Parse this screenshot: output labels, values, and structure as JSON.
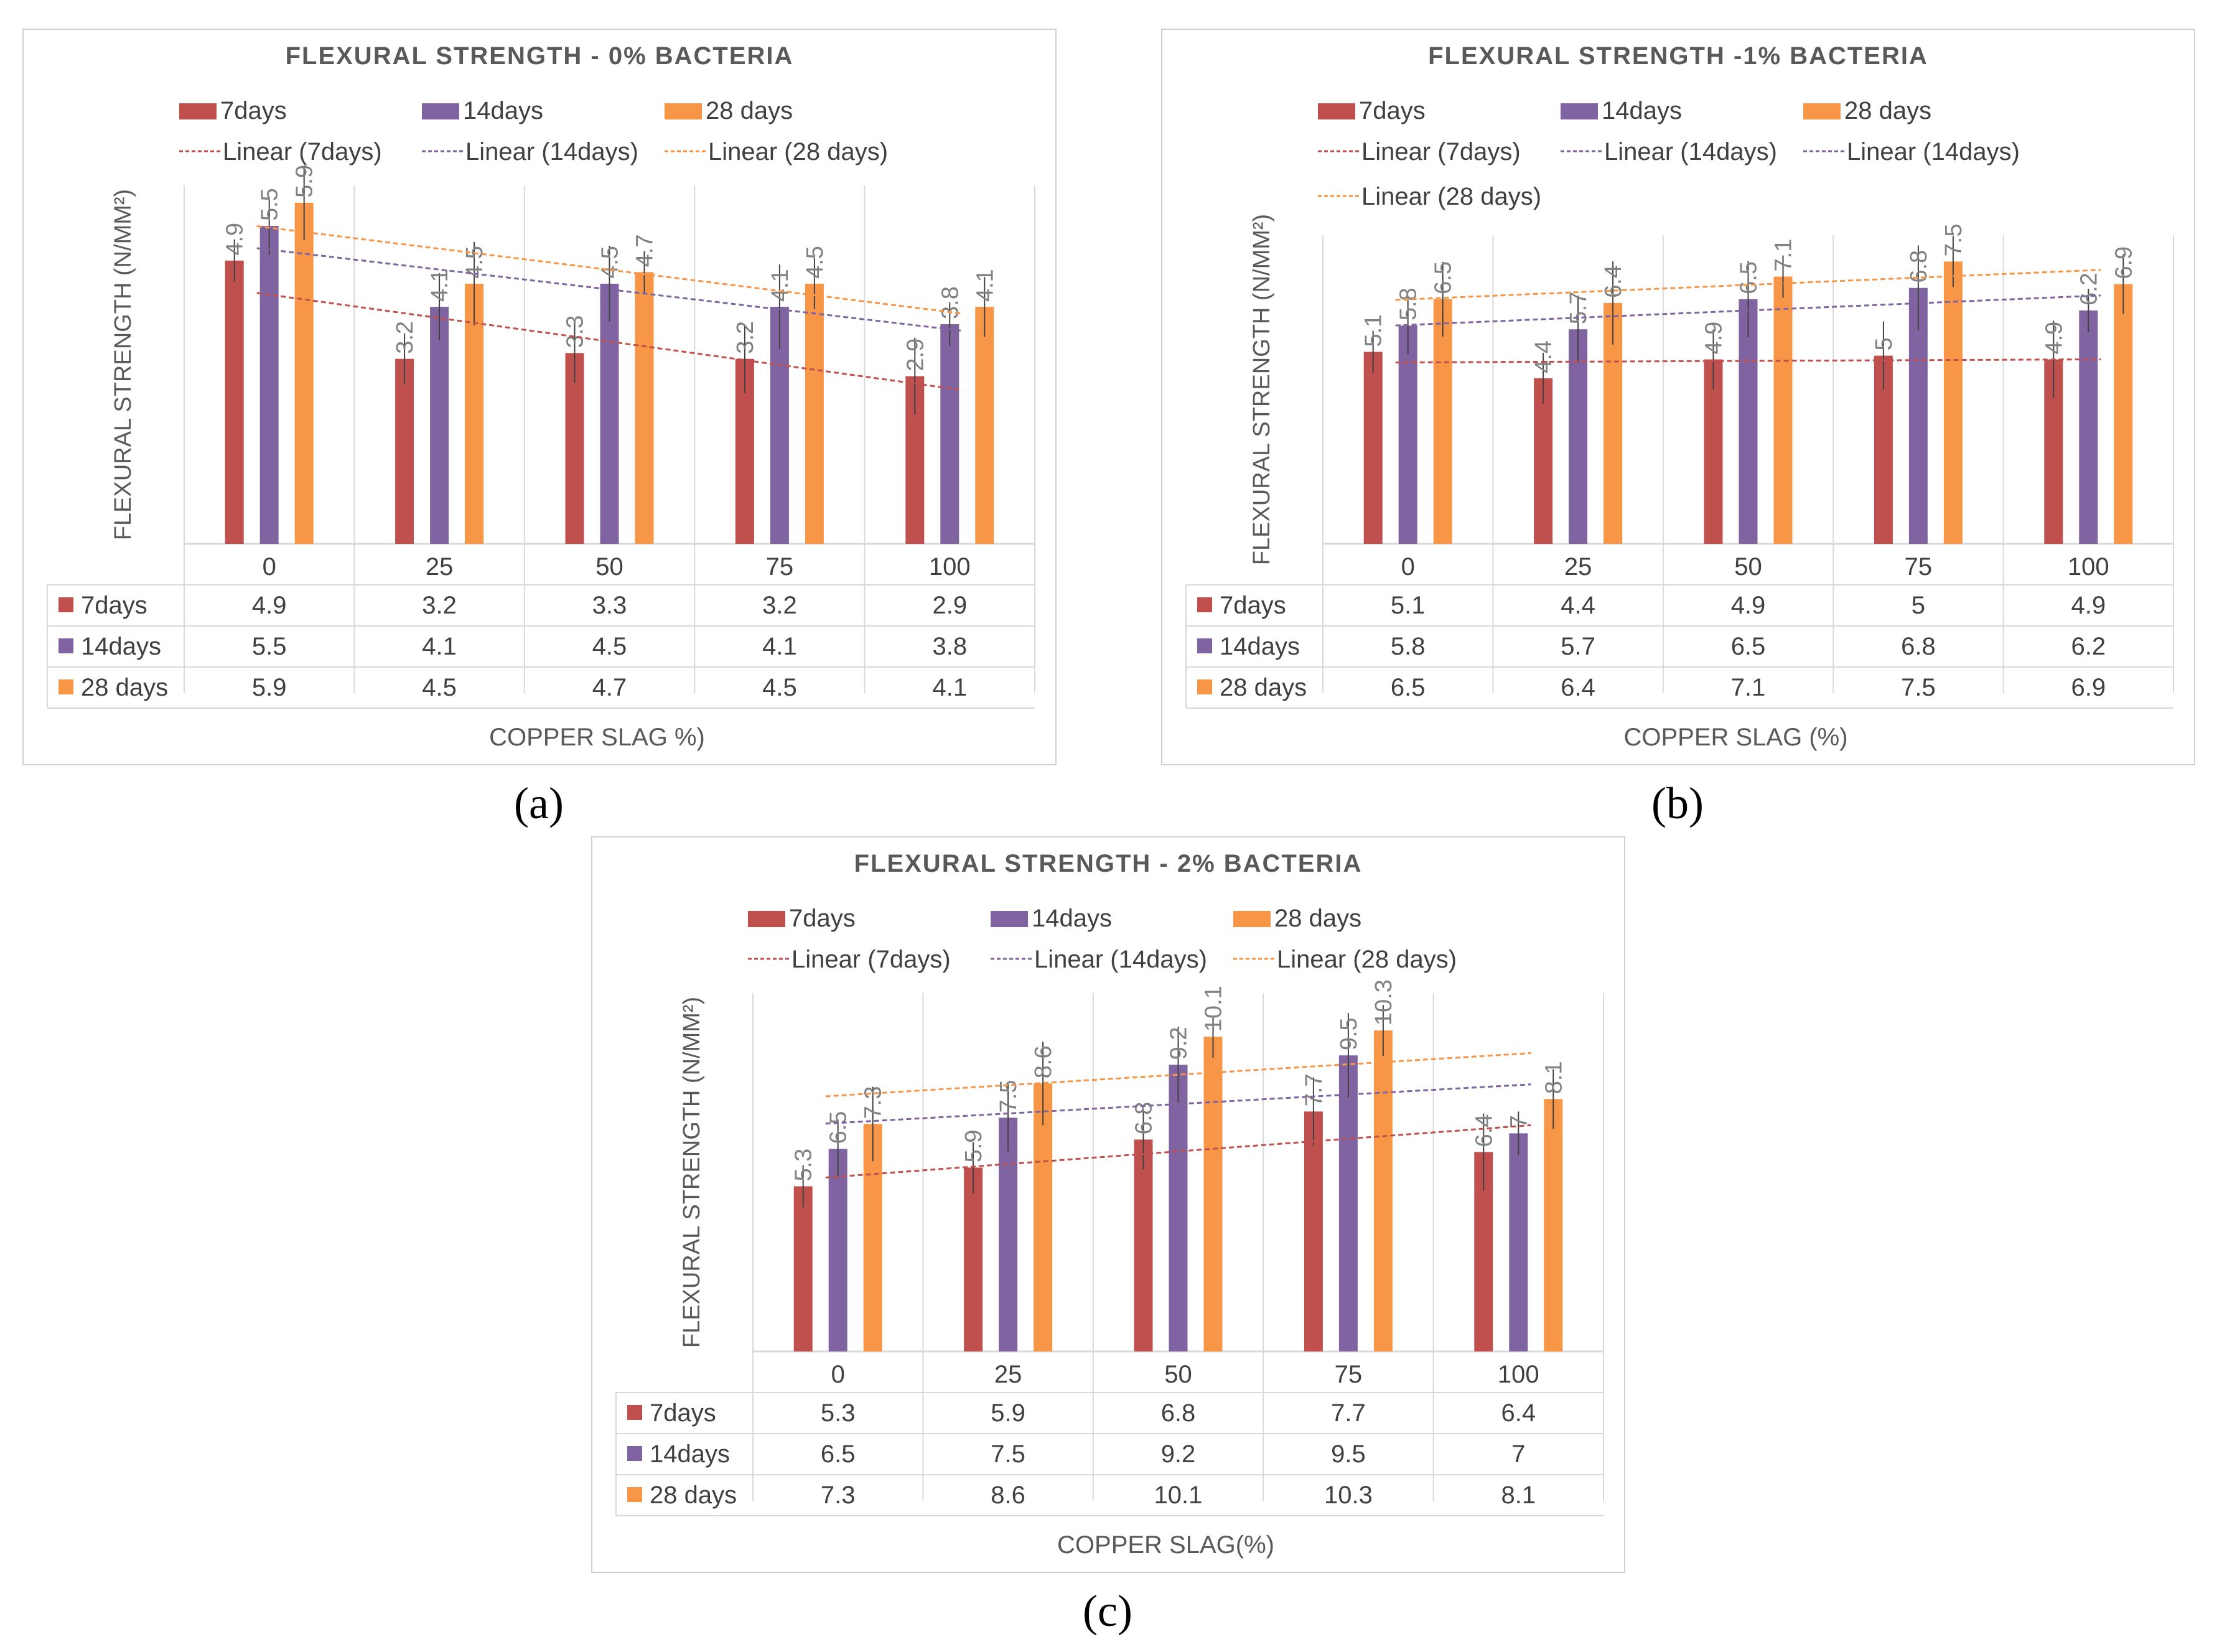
{
  "colors": {
    "7days": "#C0504D",
    "14days": "#8064A2",
    "28days": "#F79646",
    "axis": "#d9d9d9",
    "label": "#808080",
    "text": "#404040"
  },
  "captions": [
    "(a)",
    "(b)",
    "(c)"
  ],
  "chart_data": [
    {
      "type": "bar",
      "title": "FLEXURAL STRENGTH - 0% BACTERIA",
      "ylabel": "FLEXURAL STRENGTH  (N/MM²)",
      "xlabel": "COPPER SLAG %)",
      "categories": [
        "0",
        "25",
        "50",
        "75",
        "100"
      ],
      "ylim": [
        0,
        6.2
      ],
      "legend_bars": [
        "7days",
        "14days",
        "28 days"
      ],
      "legend_lines": [
        "Linear (7days)",
        "Linear (14days)",
        "Linear (28 days)"
      ],
      "series": [
        {
          "name": "7days",
          "values": [
            4.9,
            3.2,
            3.3,
            3.2,
            2.9
          ],
          "labels": [
            "4.9",
            "3.2",
            "3.3",
            "3.2",
            "2.9"
          ],
          "table": [
            "4.9",
            "3.2",
            "3.3",
            "3.2",
            "2.9"
          ]
        },
        {
          "name": "14days",
          "values": [
            5.5,
            4.1,
            4.5,
            4.1,
            3.8
          ],
          "labels": [
            "5.5",
            "4.1",
            "4.5",
            "4.1",
            "3.8"
          ],
          "table": [
            "5.5",
            "4.1",
            "4.5",
            "4.1",
            "3.8"
          ]
        },
        {
          "name": "28 days",
          "values": [
            5.9,
            4.5,
            4.7,
            4.5,
            4.1
          ],
          "labels": [
            "5.9",
            "4.5",
            "4.7",
            "4.5",
            "4.1"
          ],
          "table": [
            "5.9",
            "4.5",
            "4.7",
            "4.5",
            "4.1"
          ]
        }
      ],
      "trend_series": [
        0,
        1,
        2
      ]
    },
    {
      "type": "bar",
      "title": "FLEXURAL STRENGTH -1% BACTERIA",
      "ylabel": "FLEXURAL STRENGTH  (N/MM²)",
      "xlabel": "COPPER SLAG (%)",
      "categories": [
        "0",
        "25",
        "50",
        "75",
        "100"
      ],
      "ylim": [
        0,
        8.2
      ],
      "legend_bars": [
        "7days",
        "14days",
        "28 days"
      ],
      "legend_lines": [
        "Linear (7days)",
        "Linear (14days)",
        "Linear (14days)",
        "Linear (28 days)"
      ],
      "series": [
        {
          "name": "7days",
          "values": [
            5.1,
            4.4,
            4.9,
            5.0,
            4.9
          ],
          "labels": [
            "5.1",
            "4.4",
            "4.9",
            "5",
            "4.9"
          ],
          "table": [
            "5.1",
            "4.4",
            "4.9",
            "5",
            "4.9"
          ]
        },
        {
          "name": "14days",
          "values": [
            5.8,
            5.7,
            6.5,
            6.8,
            6.2
          ],
          "labels": [
            "5.8",
            "5.7",
            "6.5",
            "6.8",
            "6.2"
          ],
          "table": [
            "5.8",
            "5.7",
            "6.5",
            "6.8",
            "6.2"
          ]
        },
        {
          "name": "28 days",
          "values": [
            6.5,
            6.4,
            7.1,
            7.5,
            6.9
          ],
          "labels": [
            "6.5",
            "6.4",
            "7.1",
            "7.5",
            "6.9"
          ],
          "table": [
            "6.5",
            "6.4",
            "7.1",
            "7.5",
            "6.9"
          ]
        }
      ],
      "trend_series": [
        0,
        1,
        2
      ]
    },
    {
      "type": "bar",
      "title": "FLEXURAL STRENGTH - 2% BACTERIA",
      "ylabel": "FLEXURAL STRENGTH (N/MM²)",
      "xlabel": "COPPER SLAG(%)",
      "categories": [
        "0",
        "25",
        "50",
        "75",
        "100"
      ],
      "ylim": [
        0,
        11.5
      ],
      "legend_bars": [
        "7days",
        "14days",
        "28 days"
      ],
      "legend_lines": [
        "Linear (7days)",
        "Linear (14days)",
        "Linear (28 days)"
      ],
      "series": [
        {
          "name": "7days",
          "values": [
            5.3,
            5.9,
            6.8,
            7.7,
            6.4
          ],
          "labels": [
            "5.3",
            "5.9",
            "6.8",
            "7.7",
            "6.4"
          ],
          "table": [
            "5.3",
            "5.9",
            "6.8",
            "7.7",
            "6.4"
          ]
        },
        {
          "name": "14days",
          "values": [
            6.5,
            7.5,
            9.2,
            9.5,
            7.0
          ],
          "labels": [
            "6.5",
            "7.5",
            "9.2",
            "9.5",
            "7"
          ],
          "table": [
            "6.5",
            "7.5",
            "9.2",
            "9.5",
            "7"
          ]
        },
        {
          "name": "28 days",
          "values": [
            7.3,
            8.6,
            10.1,
            10.3,
            8.1
          ],
          "labels": [
            "7.3",
            "8.6",
            "10.1",
            "10.3",
            "8.1"
          ],
          "table": [
            "7.3",
            "8.6",
            "10.1",
            "10.3",
            "8.1"
          ]
        }
      ],
      "trend_series": [
        0,
        1,
        2
      ]
    }
  ]
}
